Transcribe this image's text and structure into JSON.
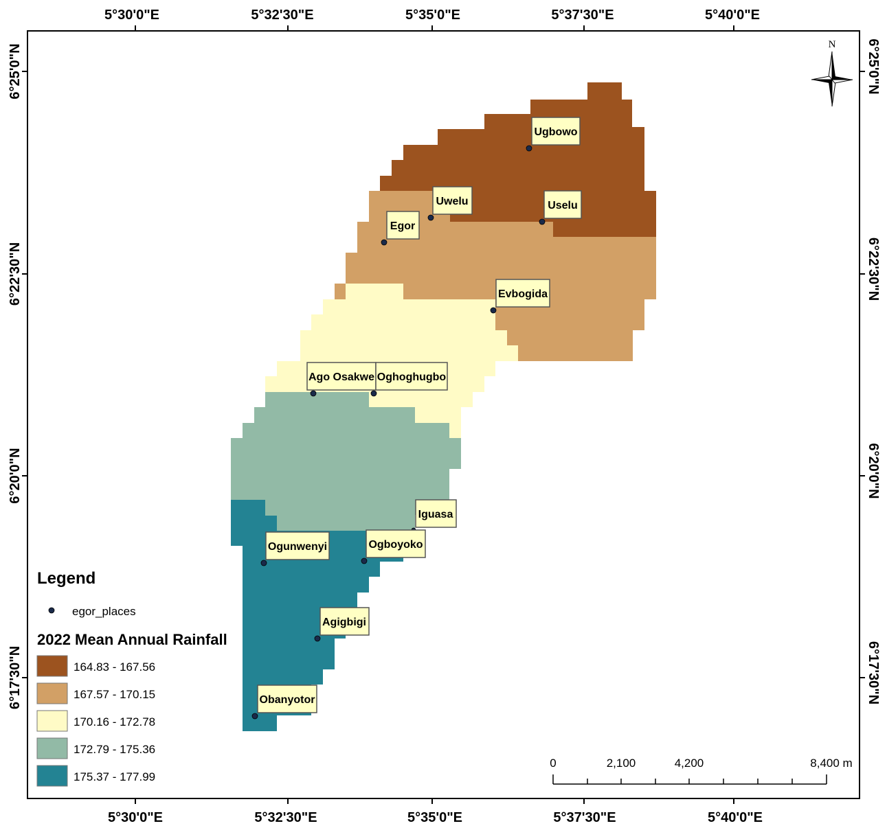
{
  "map": {
    "top_ticks": [
      "5°30'0\"E",
      "5°32'30\"E",
      "5°35'0\"E",
      "5°37'30\"E",
      "5°40'0\"E"
    ],
    "bottom_ticks": [
      "5°30'0\"E",
      "5°32'30\"E",
      "5°35'0\"E",
      "5°37'30\"E",
      "5°40'0\"E"
    ],
    "left_ticks": [
      "6°25'0\"N",
      "6°22'30\"N",
      "6°20'0\"N",
      "6°17'30\"N"
    ],
    "right_ticks": [
      "6°25'0\"N",
      "6°22'30\"N",
      "6°20'0\"N",
      "6°17'30\"N"
    ],
    "north_label": "N",
    "rainfall_classes": [
      {
        "range": "164.83 - 167.56",
        "color": "#9c531f"
      },
      {
        "range": "167.57 - 170.15",
        "color": "#d2a066"
      },
      {
        "range": "170.16 - 172.78",
        "color": "#fffbc6"
      },
      {
        "range": "172.79 - 175.36",
        "color": "#92baa6"
      },
      {
        "range": "175.37 - 177.99",
        "color": "#238393"
      }
    ],
    "places": [
      "Ugbowo",
      "Uwelu",
      "Uselu",
      "Egor",
      "Evbogida",
      "Ago Osakwe",
      "Oghoghugbo",
      "Iguasa",
      "Ogunwenyi",
      "Ogboyoko",
      "Agigbigi",
      "Obanyotor"
    ],
    "place_point_color": "#1a2a4a",
    "label_box_color": "#ffffc4"
  },
  "legend": {
    "title": "Legend",
    "places_layer": "egor_places",
    "rainfall_title": "2022 Mean Annual Rainfall"
  },
  "scale_bar": {
    "labels": [
      "0",
      "2,100",
      "4,200",
      "8,400 m"
    ]
  }
}
